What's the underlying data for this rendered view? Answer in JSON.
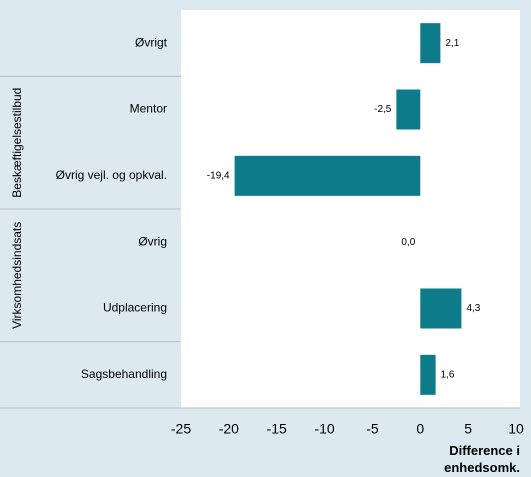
{
  "chart_data": {
    "type": "hbar",
    "categories": [
      "Øvrigt",
      "Mentor",
      "Øvrig vejl. og opkval.",
      "Øvrig",
      "Udplacering",
      "Sagsbehandling"
    ],
    "values": [
      2.1,
      -2.5,
      -19.4,
      0.0,
      4.3,
      1.6
    ],
    "value_labels": [
      "2,1",
      "-2,5",
      "-19,4",
      "0,0",
      "4,3",
      "1,6"
    ],
    "color": "#0e7b8b",
    "groups": [
      {
        "label": "Beskæftigelsestilbud",
        "categories": [
          "Mentor",
          "Øvrig vejl. og opkval."
        ]
      },
      {
        "label": "Virksomhedsindsats",
        "categories": [
          "Øvrig",
          "Udplacering"
        ]
      }
    ],
    "xlim": [
      -25,
      10
    ],
    "xticks": [
      -25,
      -20,
      -15,
      -10,
      -5,
      0,
      5,
      10
    ],
    "xlabel": "Difference i enhedsomk.",
    "grid": false
  }
}
